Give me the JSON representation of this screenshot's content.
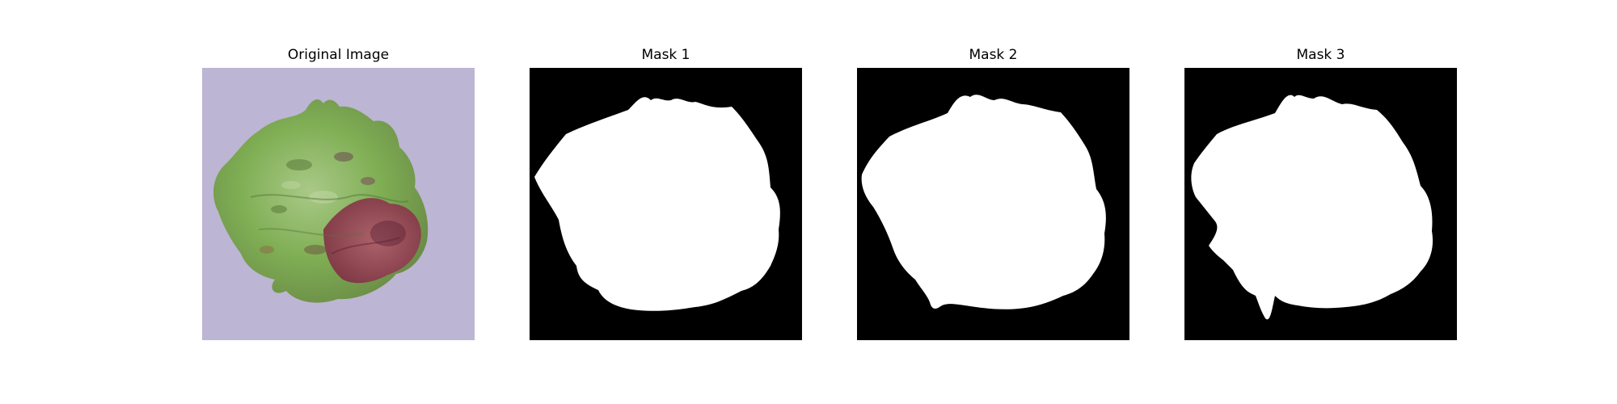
{
  "figure": {
    "panels": [
      {
        "title": "Original Image",
        "kind": "photo"
      },
      {
        "title": "Mask 1",
        "kind": "mask"
      },
      {
        "title": "Mask 2",
        "kind": "mask"
      },
      {
        "title": "Mask 3",
        "kind": "mask"
      }
    ]
  },
  "colors": {
    "background": "#ffffff",
    "mask_background": "#000000",
    "mask_foreground": "#ffffff",
    "photo_background": "#b7aecf",
    "leaf_green": "#7fae54",
    "leaf_red": "#9d3d55"
  }
}
